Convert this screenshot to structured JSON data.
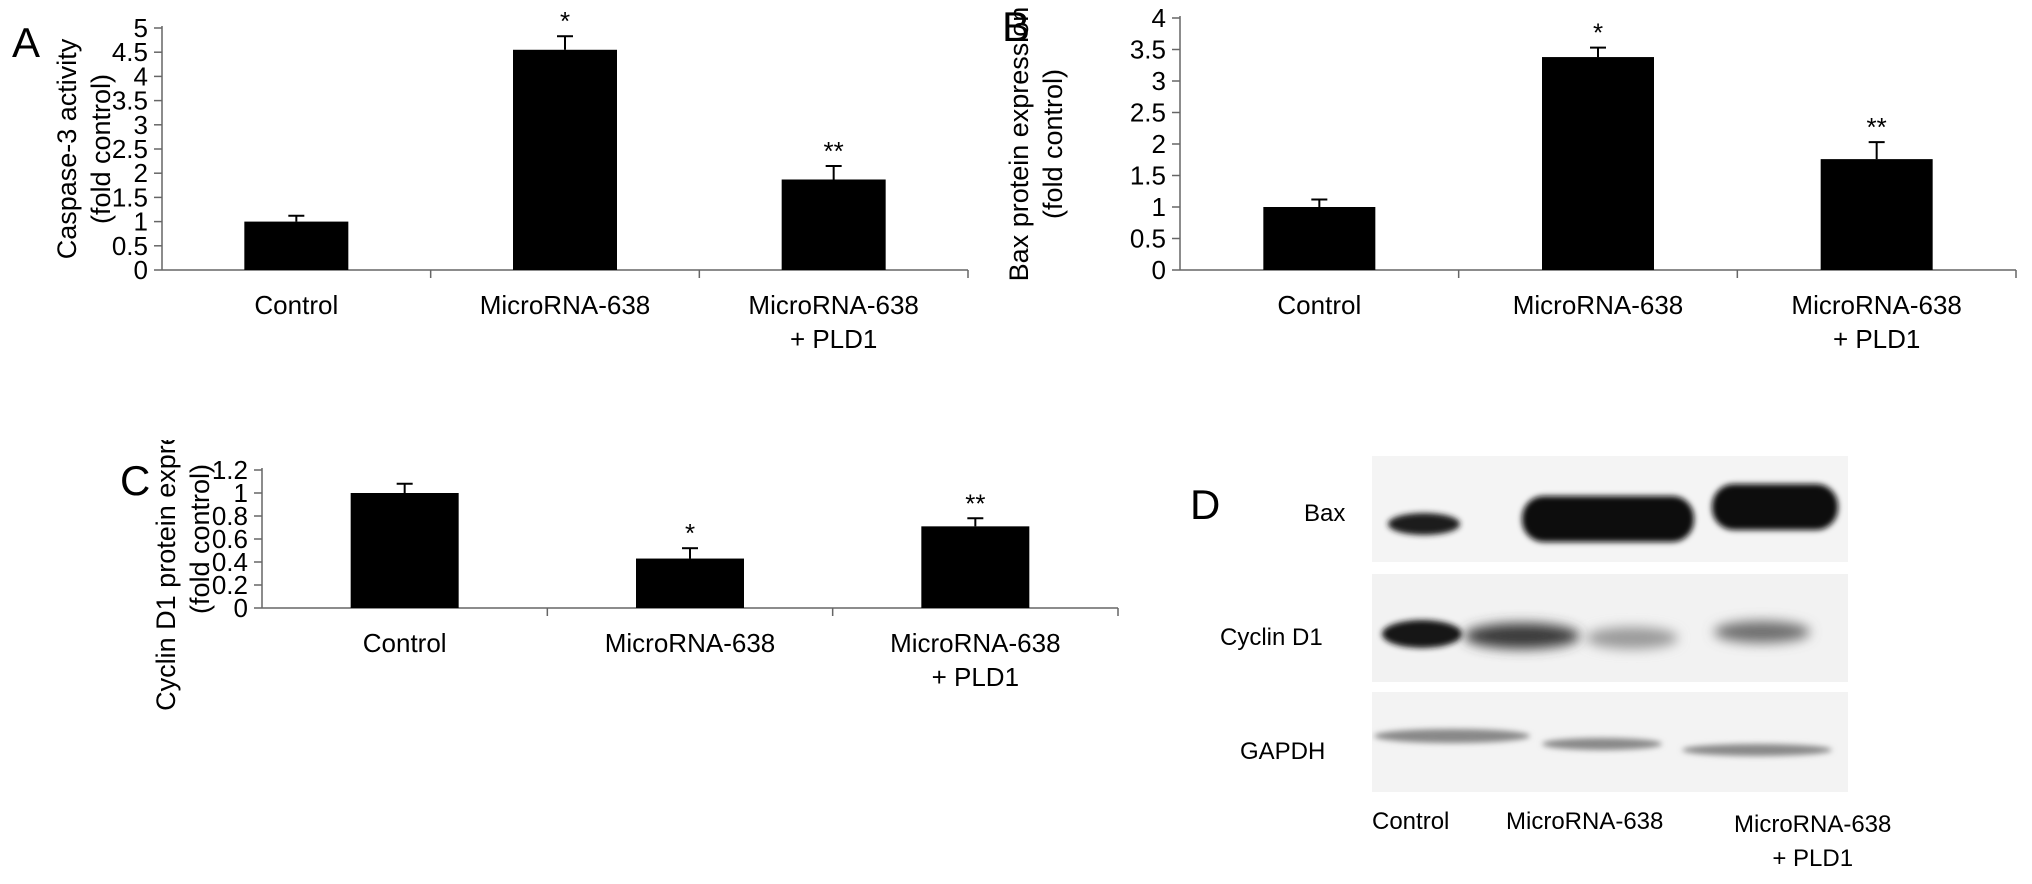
{
  "panels": {
    "A": "A",
    "B": "B",
    "C": "C",
    "D": "D"
  },
  "chart_data": [
    {
      "type": "bar",
      "panel": "A",
      "categories": [
        "Control",
        "MicroRNA-638",
        "MicroRNA-638\n+ PLD1"
      ],
      "values": [
        1.0,
        4.55,
        1.87
      ],
      "errors": [
        0.12,
        0.28,
        0.28
      ],
      "annotations": [
        "",
        "*",
        "**"
      ],
      "ylabel": "Caspase-3 activity\n(fold control)",
      "yticks": [
        "0",
        "0.5",
        "1",
        "1.5",
        "2",
        "2.5",
        "3",
        "3.5",
        "4",
        "4.5",
        "5"
      ],
      "ylim": [
        0,
        5
      ],
      "legend": false,
      "grid": false
    },
    {
      "type": "bar",
      "panel": "B",
      "categories": [
        "Control",
        "MicroRNA-638",
        "MicroRNA-638\n+ PLD1"
      ],
      "values": [
        1.0,
        3.38,
        1.76
      ],
      "errors": [
        0.12,
        0.15,
        0.27
      ],
      "annotations": [
        "",
        "*",
        "**"
      ],
      "ylabel": "Bax protein expression\n(fold control)",
      "yticks": [
        "0",
        "0.5",
        "1",
        "1.5",
        "2",
        "2.5",
        "3",
        "3.5",
        "4"
      ],
      "ylim": [
        0,
        4
      ],
      "legend": false,
      "grid": false
    },
    {
      "type": "bar",
      "panel": "C",
      "categories": [
        "Control",
        "MicroRNA-638",
        "MicroRNA-638\n+ PLD1"
      ],
      "values": [
        1.0,
        0.43,
        0.71
      ],
      "errors": [
        0.08,
        0.09,
        0.07
      ],
      "annotations": [
        "",
        "*",
        "**"
      ],
      "ylabel": "Cyclin D1 protein expression\n(fold control)",
      "yticks": [
        "0",
        "0.2",
        "0.4",
        "0.6",
        "0.8",
        "1",
        "1.2"
      ],
      "ylim": [
        0,
        1.2
      ],
      "legend": false,
      "grid": false
    }
  ],
  "blot": {
    "rows": [
      "Bax",
      "Cyclin D1",
      "GAPDH"
    ],
    "lanes": [
      "Control",
      "MicroRNA-638",
      "MicroRNA-638\n+ PLD1"
    ]
  }
}
